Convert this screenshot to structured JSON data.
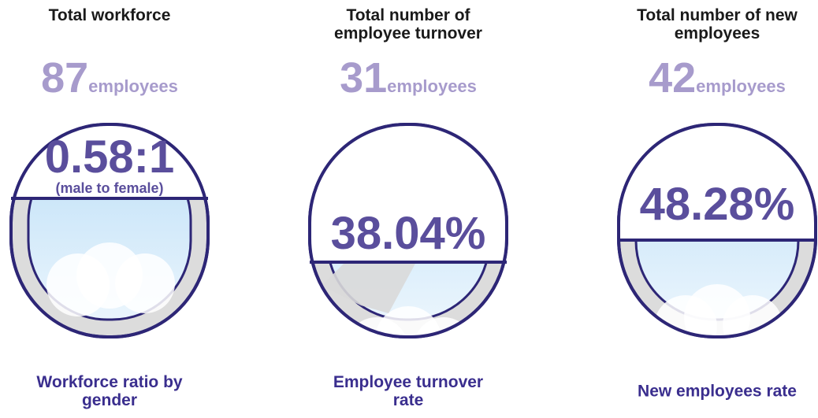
{
  "panels": [
    {
      "heading": "Total workforce",
      "count": "87",
      "unit": "employees",
      "figure": "0.58:1",
      "figure_note": "(male to female)",
      "caption": "Workforce ratio by gender"
    },
    {
      "heading": "Total number of employee turnover",
      "count": "31",
      "unit": "employees",
      "figure": "38.04%",
      "caption": "Employee turnover rate"
    },
    {
      "heading": "Total number of new employees",
      "count": "42",
      "unit": "employees",
      "figure": "48.28%",
      "caption": "New employees rate"
    }
  ]
}
